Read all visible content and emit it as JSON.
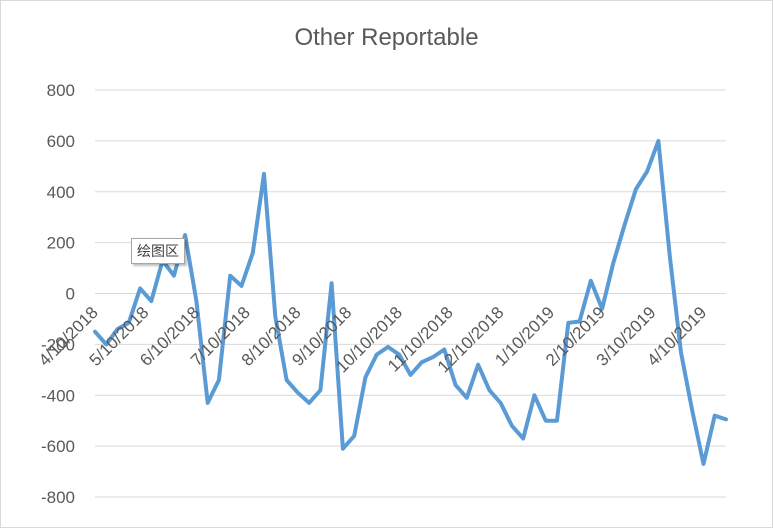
{
  "chart_data": {
    "type": "line",
    "title": "Other Reportable",
    "xlabel": "",
    "ylabel": "",
    "ylim": [
      -800,
      800
    ],
    "yticks": [
      -800,
      -600,
      -400,
      -200,
      0,
      200,
      400,
      600,
      800
    ],
    "grid": true,
    "legend": "none",
    "line_color": "#5b9bd5",
    "tick_labels": [
      "4/10/2018",
      "5/10/2018",
      "6/10/2018",
      "7/10/2018",
      "8/10/2018",
      "9/10/2018",
      "10/10/2018",
      "11/10/2018",
      "12/10/2018",
      "1/10/2019",
      "2/10/2019",
      "3/10/2019",
      "4/10/2019"
    ],
    "tick_x_positions": [
      0,
      4.5,
      9,
      13.5,
      18,
      22.5,
      27,
      31.5,
      36,
      40.5,
      45,
      49.5,
      54
    ],
    "series": [
      {
        "values": [
          -150,
          -200,
          -140,
          -115,
          20,
          -30,
          130,
          70,
          230,
          -30,
          -430,
          -340,
          70,
          30,
          160,
          470,
          -90,
          -340,
          -390,
          -430,
          -380,
          40,
          -610,
          -560,
          -330,
          -240,
          -210,
          -240,
          -320,
          -270,
          -250,
          -220,
          -360,
          -410,
          -280,
          -380,
          -430,
          -520,
          -570,
          -400,
          -500,
          -500,
          -115,
          -110,
          50,
          -60,
          120,
          270,
          410,
          480,
          600,
          150,
          -230,
          -460,
          -670,
          -480,
          -495
        ]
      }
    ]
  },
  "tooltip": {
    "label": "绘图区"
  }
}
